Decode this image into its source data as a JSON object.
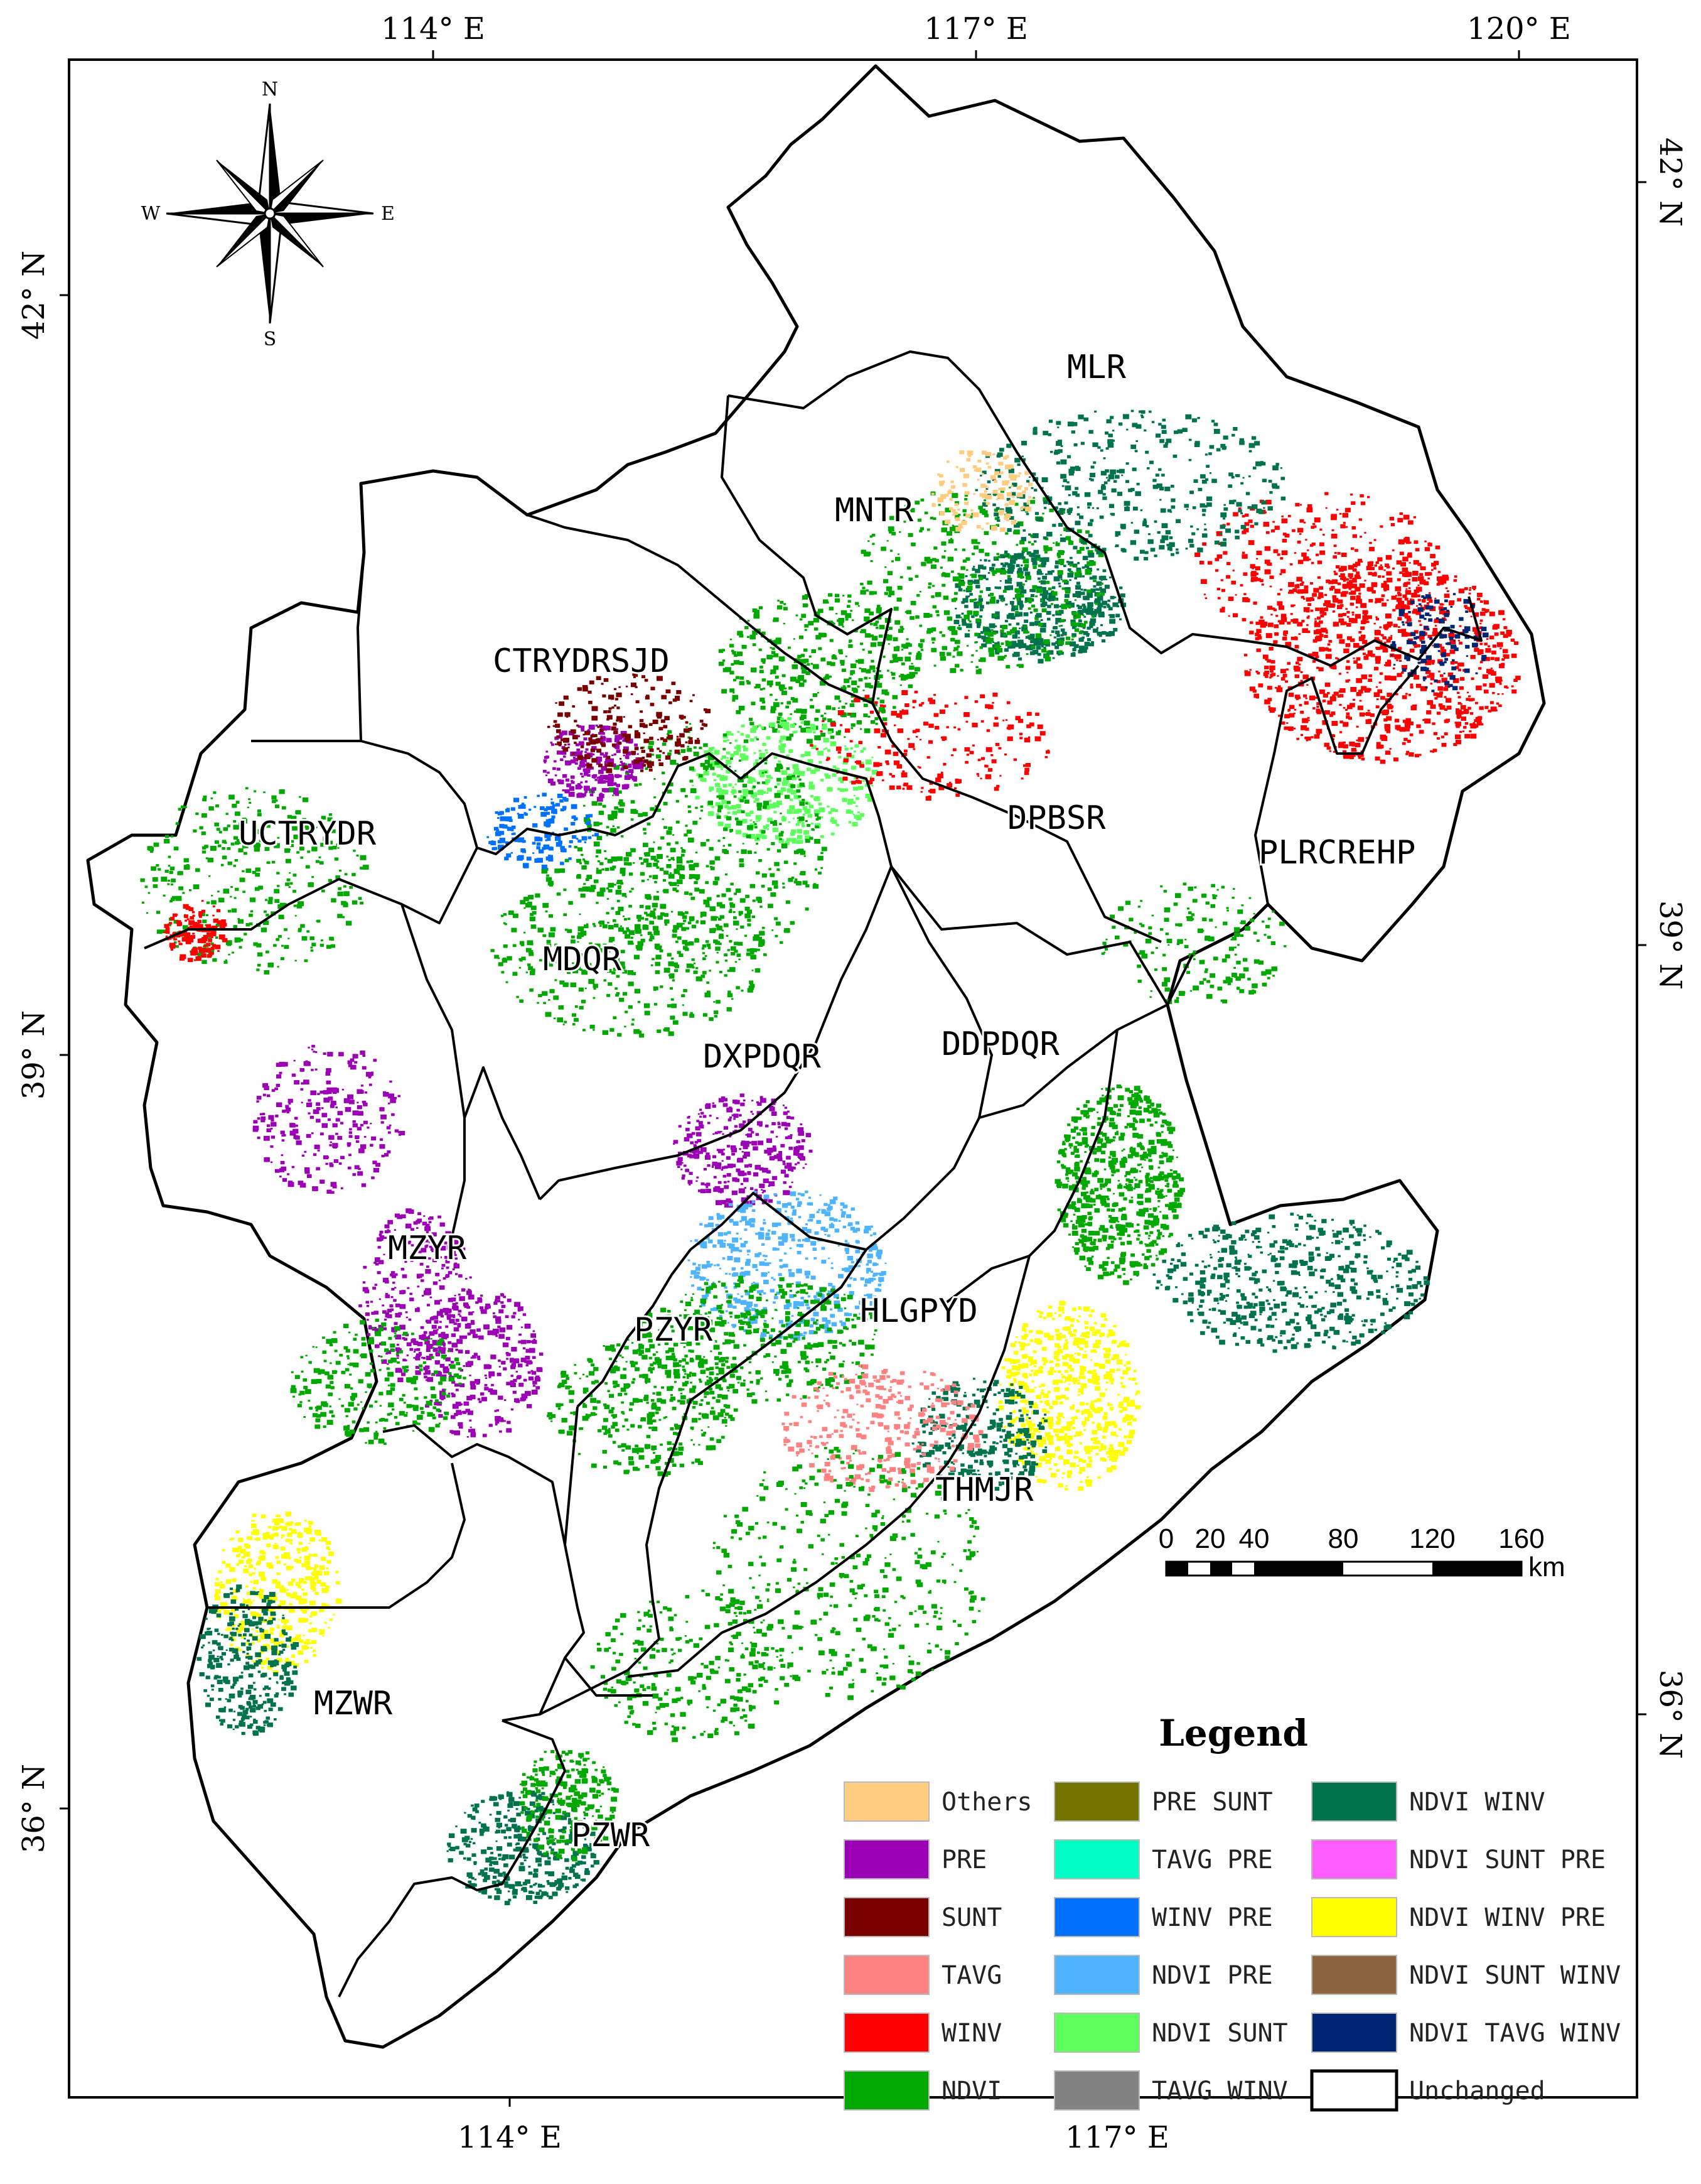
{
  "axes": {
    "top": [
      "114° E",
      "117° E",
      "120° E"
    ],
    "bottom": [
      "114° E",
      "117° E"
    ],
    "left": [
      "42° N",
      "39° N",
      "36° N"
    ],
    "right": [
      "42° N",
      "39° N",
      "36° N"
    ]
  },
  "compass": {
    "n": "N",
    "s": "S",
    "e": "E",
    "w": "W"
  },
  "regions": [
    "MLR",
    "MNTR",
    "CTRYDRSJD",
    "UCTRYDR",
    "DPBSR",
    "PLRCREHP",
    "MDQR",
    "DXPDQR",
    "DDPDQR",
    "MZYR",
    "PZYR",
    "HLGPYD",
    "THMJR",
    "MZWR",
    "PZWR"
  ],
  "scalebar": {
    "ticks": [
      "0",
      "20",
      "40",
      "80",
      "120",
      "160"
    ],
    "unit": "km"
  },
  "legend": {
    "title": "Legend",
    "items": [
      {
        "label": "Others",
        "color": "#FFCC80"
      },
      {
        "label": "PRE",
        "color": "#9B00B4"
      },
      {
        "label": "SUNT",
        "color": "#7A0000"
      },
      {
        "label": "TAVG",
        "color": "#FF8282"
      },
      {
        "label": "WINV",
        "color": "#FF0000"
      },
      {
        "label": "NDVI",
        "color": "#00A800"
      },
      {
        "label": "PRE SUNT",
        "color": "#737300"
      },
      {
        "label": "TAVG PRE",
        "color": "#00FFC5"
      },
      {
        "label": "WINV PRE",
        "color": "#0070FF"
      },
      {
        "label": "NDVI PRE",
        "color": "#4FB4FF"
      },
      {
        "label": "NDVI SUNT",
        "color": "#5CFF5C"
      },
      {
        "label": "TAVG WINV",
        "color": "#828282"
      },
      {
        "label": "NDVI WINV",
        "color": "#00734C"
      },
      {
        "label": "NDVI SUNT PRE",
        "color": "#FF5CFF"
      },
      {
        "label": "NDVI WINV PRE",
        "color": "#FFFF00"
      },
      {
        "label": "NDVI SUNT WINV",
        "color": "#8C6440"
      },
      {
        "label": "NDVI TAVG WINV",
        "color": "#002673"
      },
      {
        "label": "Unchanged",
        "color": "#FFFFFF"
      }
    ]
  }
}
